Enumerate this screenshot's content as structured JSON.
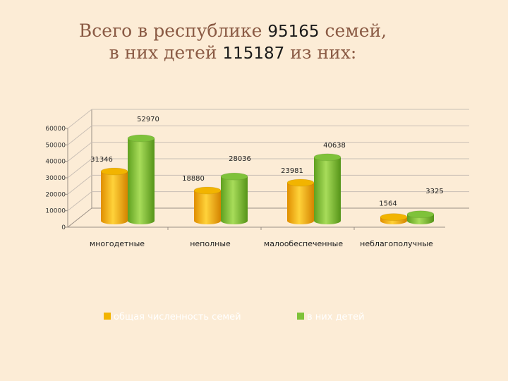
{
  "title": {
    "line1_prefix": "Всего в республике ",
    "line1_number": "95165",
    "line1_suffix": " семей,",
    "line2_prefix": "в них детей ",
    "line2_number": "115187",
    "line2_suffix": "  из них:"
  },
  "chart_data": {
    "type": "bar",
    "categories": [
      "многодетные",
      "неполные",
      "малообеспеченные",
      "неблагополучные"
    ],
    "series": [
      {
        "name": "общая численность семей",
        "values": [
          31346,
          18880,
          23981,
          1564
        ],
        "color": "#f2b400"
      },
      {
        "name": "в них детей",
        "values": [
          52970,
          28036,
          40638,
          3325
        ],
        "color": "#7fc23a"
      }
    ],
    "ylim": [
      0,
      60000
    ],
    "yticks": [
      0,
      10000,
      20000,
      30000,
      40000,
      50000,
      60000
    ],
    "grid": true,
    "legend_position": "bottom",
    "style": "3d-cylinder"
  }
}
